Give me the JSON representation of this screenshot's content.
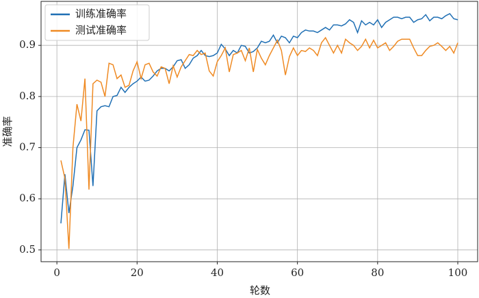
{
  "chart_data": {
    "type": "line",
    "xlabel": "轮数",
    "ylabel": "准确率",
    "x": [
      1,
      2,
      3,
      4,
      5,
      6,
      7,
      8,
      9,
      10,
      11,
      12,
      13,
      14,
      15,
      16,
      17,
      18,
      19,
      20,
      21,
      22,
      23,
      24,
      25,
      26,
      27,
      28,
      29,
      30,
      31,
      32,
      33,
      34,
      35,
      36,
      37,
      38,
      39,
      40,
      41,
      42,
      43,
      44,
      45,
      46,
      47,
      48,
      49,
      50,
      51,
      52,
      53,
      54,
      55,
      56,
      57,
      58,
      59,
      60,
      61,
      62,
      63,
      64,
      65,
      66,
      67,
      68,
      69,
      70,
      71,
      72,
      73,
      74,
      75,
      76,
      77,
      78,
      79,
      80,
      81,
      82,
      83,
      84,
      85,
      86,
      87,
      88,
      89,
      90,
      91,
      92,
      93,
      94,
      95,
      96,
      97,
      98,
      99,
      100
    ],
    "series": [
      {
        "name": "训练准确率",
        "color": "#1f6fb4",
        "values": [
          0.552,
          0.648,
          0.572,
          0.625,
          0.7,
          0.715,
          0.735,
          0.734,
          0.625,
          0.772,
          0.78,
          0.782,
          0.78,
          0.8,
          0.802,
          0.818,
          0.808,
          0.818,
          0.825,
          0.83,
          0.838,
          0.83,
          0.832,
          0.84,
          0.85,
          0.855,
          0.855,
          0.85,
          0.858,
          0.87,
          0.872,
          0.855,
          0.862,
          0.875,
          0.88,
          0.89,
          0.88,
          0.878,
          0.88,
          0.885,
          0.902,
          0.893,
          0.88,
          0.89,
          0.885,
          0.9,
          0.898,
          0.885,
          0.888,
          0.895,
          0.908,
          0.905,
          0.908,
          0.92,
          0.905,
          0.918,
          0.915,
          0.905,
          0.918,
          0.915,
          0.925,
          0.93,
          0.928,
          0.928,
          0.925,
          0.93,
          0.935,
          0.93,
          0.94,
          0.94,
          0.938,
          0.942,
          0.95,
          0.945,
          0.925,
          0.948,
          0.94,
          0.945,
          0.94,
          0.95,
          0.935,
          0.945,
          0.95,
          0.955,
          0.955,
          0.952,
          0.955,
          0.955,
          0.945,
          0.95,
          0.952,
          0.96,
          0.948,
          0.955,
          0.955,
          0.952,
          0.958,
          0.962,
          0.952,
          0.95
        ]
      },
      {
        "name": "测试准确率",
        "color": "#ef8a23",
        "values": [
          0.675,
          0.64,
          0.502,
          0.7,
          0.785,
          0.752,
          0.835,
          0.618,
          0.825,
          0.832,
          0.828,
          0.8,
          0.865,
          0.862,
          0.835,
          0.842,
          0.818,
          0.822,
          0.85,
          0.868,
          0.835,
          0.862,
          0.865,
          0.848,
          0.84,
          0.858,
          0.855,
          0.825,
          0.86,
          0.838,
          0.858,
          0.87,
          0.882,
          0.88,
          0.89,
          0.882,
          0.885,
          0.85,
          0.84,
          0.868,
          0.88,
          0.895,
          0.848,
          0.882,
          0.885,
          0.89,
          0.87,
          0.895,
          0.848,
          0.892,
          0.875,
          0.862,
          0.88,
          0.895,
          0.91,
          0.89,
          0.842,
          0.878,
          0.895,
          0.88,
          0.89,
          0.888,
          0.895,
          0.89,
          0.88,
          0.905,
          0.915,
          0.9,
          0.885,
          0.9,
          0.885,
          0.912,
          0.905,
          0.9,
          0.89,
          0.898,
          0.912,
          0.895,
          0.91,
          0.895,
          0.9,
          0.905,
          0.89,
          0.898,
          0.908,
          0.912,
          0.912,
          0.912,
          0.895,
          0.88,
          0.88,
          0.89,
          0.898,
          0.9,
          0.905,
          0.898,
          0.89,
          0.898,
          0.885,
          0.905
        ]
      }
    ],
    "xlim": [
      -3.95,
      104.95
    ],
    "ylim": [
      0.477,
      0.986
    ],
    "xticks": [
      0,
      20,
      40,
      60,
      80,
      100
    ],
    "yticks": [
      0.5,
      0.6,
      0.7,
      0.8,
      0.9
    ],
    "grid": true,
    "legend": "upper left"
  }
}
